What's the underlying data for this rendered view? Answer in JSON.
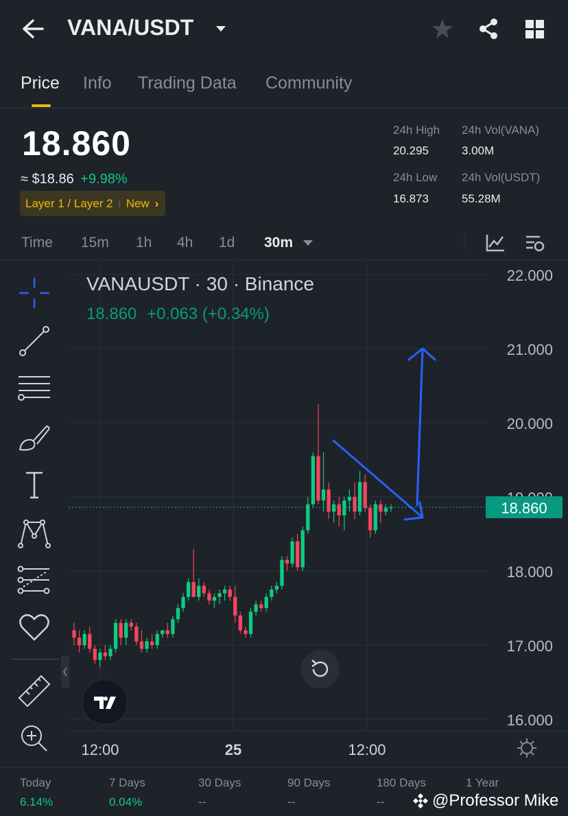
{
  "header": {
    "pair": "VANA/USDT"
  },
  "tabs": [
    "Price",
    "Info",
    "Trading Data",
    "Community"
  ],
  "price": {
    "last": "18.860",
    "usd": "≈ $18.86",
    "change_pct": "+9.98%",
    "tag": "Layer 1 / Layer 2",
    "tag_new": "New"
  },
  "stats": {
    "high_label": "24h High",
    "high": "20.295",
    "low_label": "24h Low",
    "low": "16.873",
    "vol_base_label": "24h Vol(VANA)",
    "vol_base": "3.00M",
    "vol_quote_label": "24h Vol(USDT)",
    "vol_quote": "55.28M"
  },
  "timeframes": [
    "Time",
    "15m",
    "1h",
    "4h",
    "1d",
    "30m"
  ],
  "chart_legend": {
    "title": "VANAUSDT · 30 · Binance",
    "close": "18.860",
    "change": "+0.063 (+0.34%)"
  },
  "chart_data": {
    "type": "candlestick",
    "y_ticks": [
      "22.000",
      "21.000",
      "20.000",
      "19.000",
      "18.000",
      "17.000",
      "16.000"
    ],
    "ylim": [
      16,
      22
    ],
    "x_ticks": [
      "12:00",
      "25",
      "12:00"
    ],
    "last_price_label": "18.860",
    "last_price": 18.86,
    "candles": [
      [
        17.2,
        17.3,
        17.0,
        17.1
      ],
      [
        17.1,
        17.2,
        16.9,
        17.0
      ],
      [
        17.0,
        17.2,
        16.95,
        17.15
      ],
      [
        17.15,
        17.25,
        16.9,
        16.95
      ],
      [
        16.95,
        17.0,
        16.75,
        16.8
      ],
      [
        16.8,
        16.95,
        16.7,
        16.9
      ],
      [
        16.9,
        17.0,
        16.8,
        16.85
      ],
      [
        16.85,
        17.0,
        16.8,
        16.95
      ],
      [
        16.95,
        17.35,
        16.9,
        17.3
      ],
      [
        17.3,
        17.35,
        17.0,
        17.1
      ],
      [
        17.1,
        17.35,
        17.0,
        17.3
      ],
      [
        17.3,
        17.35,
        17.2,
        17.25
      ],
      [
        17.25,
        17.3,
        17.0,
        17.05
      ],
      [
        17.05,
        17.2,
        16.9,
        16.95
      ],
      [
        16.95,
        17.1,
        16.9,
        17.05
      ],
      [
        17.05,
        17.15,
        16.95,
        17.0
      ],
      [
        17.0,
        17.2,
        16.95,
        17.15
      ],
      [
        17.15,
        17.2,
        17.1,
        17.2
      ],
      [
        17.2,
        17.3,
        17.1,
        17.15
      ],
      [
        17.15,
        17.4,
        17.1,
        17.35
      ],
      [
        17.35,
        17.55,
        17.3,
        17.5
      ],
      [
        17.5,
        17.7,
        17.45,
        17.65
      ],
      [
        17.65,
        17.9,
        17.6,
        17.85
      ],
      [
        17.85,
        18.3,
        17.65,
        17.65
      ],
      [
        17.65,
        17.9,
        17.6,
        17.8
      ],
      [
        17.8,
        17.85,
        17.65,
        17.7
      ],
      [
        17.7,
        17.75,
        17.55,
        17.6
      ],
      [
        17.6,
        17.7,
        17.5,
        17.65
      ],
      [
        17.65,
        17.75,
        17.55,
        17.7
      ],
      [
        17.7,
        17.8,
        17.6,
        17.75
      ],
      [
        17.75,
        17.8,
        17.6,
        17.65
      ],
      [
        17.65,
        17.8,
        17.3,
        17.4
      ],
      [
        17.4,
        17.45,
        17.15,
        17.2
      ],
      [
        17.2,
        17.25,
        17.1,
        17.15
      ],
      [
        17.15,
        17.5,
        17.1,
        17.45
      ],
      [
        17.45,
        17.6,
        17.4,
        17.55
      ],
      [
        17.55,
        17.6,
        17.45,
        17.5
      ],
      [
        17.5,
        17.7,
        17.45,
        17.65
      ],
      [
        17.65,
        17.8,
        17.6,
        17.75
      ],
      [
        17.75,
        17.85,
        17.7,
        17.8
      ],
      [
        17.8,
        18.2,
        17.75,
        18.15
      ],
      [
        18.15,
        18.2,
        18.0,
        18.1
      ],
      [
        18.1,
        18.45,
        18.05,
        18.4
      ],
      [
        18.4,
        18.5,
        18.0,
        18.05
      ],
      [
        18.05,
        18.6,
        18.0,
        18.55
      ],
      [
        18.55,
        19.0,
        18.5,
        18.9
      ],
      [
        18.9,
        19.6,
        18.85,
        19.55
      ],
      [
        19.55,
        20.25,
        18.9,
        18.95
      ],
      [
        18.95,
        19.6,
        18.8,
        19.1
      ],
      [
        19.1,
        19.2,
        18.7,
        18.8
      ],
      [
        18.8,
        18.95,
        18.65,
        18.9
      ],
      [
        18.9,
        19.0,
        18.6,
        18.75
      ],
      [
        18.75,
        19.0,
        18.55,
        18.95
      ],
      [
        18.95,
        19.1,
        18.8,
        19.0
      ],
      [
        19.0,
        19.2,
        18.7,
        18.8
      ],
      [
        18.8,
        19.35,
        18.75,
        19.2
      ],
      [
        19.2,
        19.3,
        18.8,
        18.85
      ],
      [
        18.85,
        18.9,
        18.45,
        18.55
      ],
      [
        18.55,
        18.95,
        18.5,
        18.9
      ],
      [
        18.9,
        18.95,
        18.65,
        18.8
      ],
      [
        18.8,
        18.9,
        18.75,
        18.85
      ],
      [
        18.85,
        18.9,
        18.8,
        18.86
      ]
    ],
    "annotations": [
      {
        "type": "arrow",
        "color": "#2962ff",
        "note": "downward trendline arrow"
      },
      {
        "type": "arrow",
        "color": "#2962ff",
        "note": "upward arrow to 21"
      }
    ]
  },
  "bottom": {
    "periods": [
      {
        "label": "Today",
        "value": "6.14%"
      },
      {
        "label": "7 Days",
        "value": "0.04%"
      },
      {
        "label": "30 Days",
        "value": "--"
      },
      {
        "label": "90 Days",
        "value": "--"
      },
      {
        "label": "180 Days",
        "value": "--"
      },
      {
        "label": "1 Year",
        "value": "--"
      }
    ],
    "watermark": "@Professor Mike"
  },
  "colors": {
    "up": "#0ecb81",
    "down": "#f6465d",
    "accent": "#f0b90b",
    "label_bg": "#089981"
  },
  "icons": [
    "back-arrow-icon",
    "dropdown-caret-icon",
    "star-icon",
    "share-icon",
    "grid-icon",
    "indicator-icon",
    "settings-icon",
    "crosshair-icon",
    "trendline-icon",
    "fib-icon",
    "brush-icon",
    "text-icon",
    "pattern-icon",
    "projection-icon",
    "heart-icon",
    "ruler-icon",
    "zoom-icon",
    "reset-icon",
    "tradingview-logo",
    "chart-settings-icon"
  ]
}
